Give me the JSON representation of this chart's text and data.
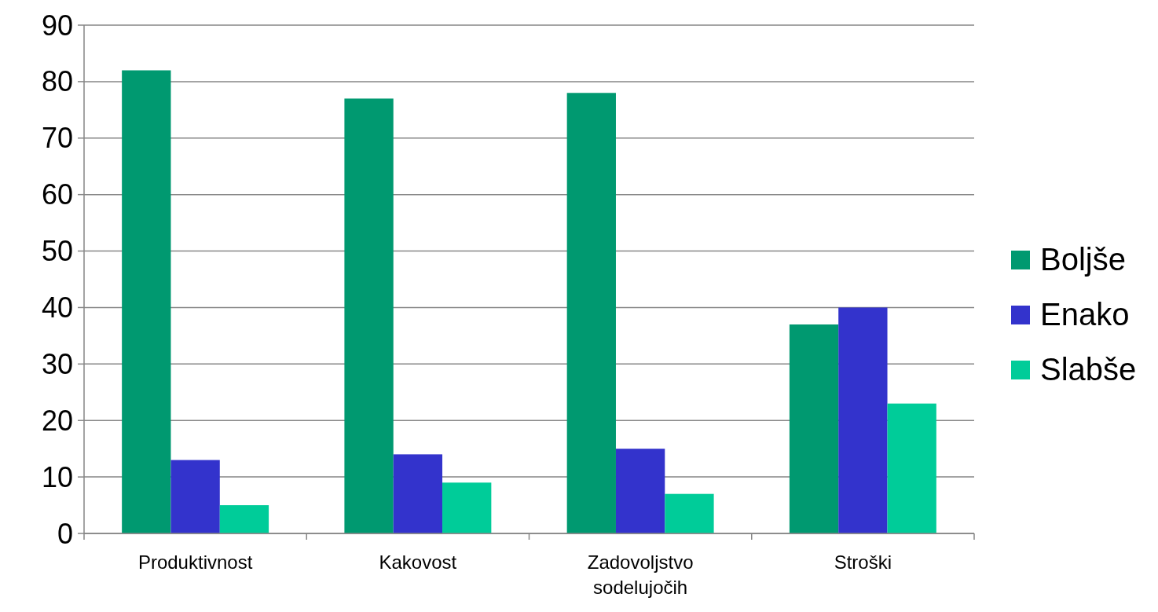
{
  "chart_data": {
    "type": "bar",
    "categories": [
      "Produktivnost",
      "Kakovost",
      "Zadovoljstvo sodelujočih",
      "Stroški"
    ],
    "series": [
      {
        "name": "Boljše",
        "color": "#009970",
        "values": [
          82,
          77,
          78,
          37
        ]
      },
      {
        "name": "Enako",
        "color": "#3333cc",
        "values": [
          13,
          14,
          15,
          40
        ]
      },
      {
        "name": "Slabše",
        "color": "#00cc99",
        "values": [
          5,
          9,
          7,
          23
        ]
      }
    ],
    "ylim": [
      0,
      90
    ],
    "yticks": [
      0,
      10,
      20,
      30,
      40,
      50,
      60,
      70,
      80,
      90
    ],
    "grid": "y",
    "legend": "right"
  }
}
